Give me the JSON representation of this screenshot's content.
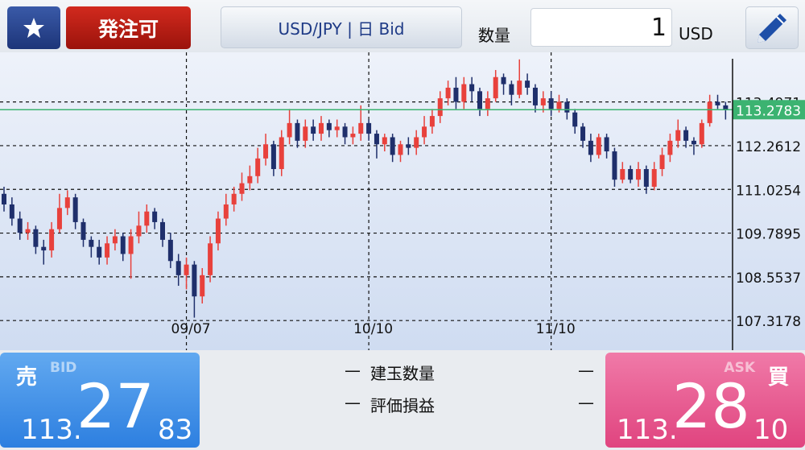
{
  "header": {
    "order_button": "発注可",
    "symbol": "USD/JPY | 日 Bid",
    "quantity_label": "数量",
    "quantity": 1,
    "currency": "USD"
  },
  "chart_data": {
    "type": "candlestick",
    "grid": true,
    "up_color": "#e8413c",
    "down_color": "#1f2f6b",
    "price_line_color": "#3cb371",
    "ylim": [
      106.48,
      114.9
    ],
    "yticks": [
      107.3178,
      108.5537,
      109.7895,
      111.0254,
      112.2612,
      113.4971
    ],
    "categories": [
      null,
      null,
      null,
      null,
      null,
      null,
      null,
      null,
      null,
      null,
      null,
      null,
      null,
      null,
      null,
      null,
      null,
      null,
      null,
      null,
      null,
      null,
      null,
      "09/07",
      null,
      null,
      null,
      null,
      null,
      null,
      null,
      null,
      null,
      null,
      null,
      null,
      null,
      null,
      null,
      null,
      null,
      null,
      null,
      null,
      null,
      null,
      "10/10",
      null,
      null,
      null,
      null,
      null,
      null,
      null,
      null,
      null,
      null,
      null,
      null,
      null,
      null,
      null,
      null,
      null,
      null,
      null,
      null,
      null,
      null,
      "11/10",
      null,
      null,
      null,
      null,
      null,
      null,
      null,
      null,
      null,
      null,
      null,
      null,
      null,
      null,
      null,
      null,
      null,
      null,
      null,
      null,
      null,
      null
    ],
    "open": [
      110.9,
      110.6,
      110.2,
      109.8,
      109.9,
      109.4,
      109.3,
      109.9,
      110.5,
      110.8,
      110.1,
      109.6,
      109.4,
      109.1,
      109.5,
      109.7,
      109.2,
      109.7,
      110.0,
      110.4,
      110.1,
      109.6,
      109.0,
      108.6,
      108.9,
      108.0,
      108.6,
      109.5,
      110.2,
      110.6,
      110.9,
      111.2,
      111.4,
      111.9,
      112.3,
      111.6,
      112.5,
      112.9,
      112.4,
      112.8,
      112.6,
      112.9,
      112.7,
      112.8,
      112.5,
      112.6,
      112.9,
      112.6,
      112.3,
      112.5,
      112.0,
      112.3,
      112.2,
      112.5,
      112.8,
      113.1,
      113.6,
      113.9,
      113.5,
      114.0,
      113.8,
      113.3,
      113.6,
      114.2,
      114.0,
      113.7,
      114.1,
      113.9,
      113.4,
      113.6,
      113.3,
      113.5,
      113.2,
      112.8,
      112.4,
      112.0,
      112.5,
      112.1,
      111.3,
      111.6,
      111.3,
      111.6,
      111.1,
      111.6,
      112.0,
      112.4,
      112.7,
      112.4,
      112.3,
      112.9,
      113.5,
      113.4
    ],
    "high": [
      111.1,
      110.8,
      110.4,
      110.1,
      110.0,
      109.6,
      110.1,
      110.9,
      111.0,
      110.9,
      110.2,
      109.7,
      109.6,
      109.7,
      109.9,
      109.8,
      109.9,
      110.4,
      110.6,
      110.5,
      110.2,
      109.8,
      109.2,
      109.1,
      109.0,
      108.8,
      109.7,
      110.4,
      110.9,
      111.1,
      111.5,
      111.7,
      112.2,
      112.6,
      112.4,
      112.7,
      113.3,
      113.0,
      113.0,
      113.0,
      113.1,
      113.0,
      113.0,
      112.9,
      112.8,
      113.4,
      113.0,
      112.7,
      112.6,
      112.6,
      112.4,
      112.5,
      112.7,
      113.1,
      113.3,
      113.8,
      114.1,
      114.2,
      114.2,
      114.2,
      113.9,
      113.8,
      114.4,
      114.3,
      114.1,
      114.7,
      114.3,
      114.0,
      113.8,
      113.8,
      113.7,
      113.6,
      113.3,
      112.9,
      112.6,
      112.6,
      112.6,
      112.2,
      111.8,
      111.7,
      111.8,
      111.7,
      111.8,
      112.2,
      112.6,
      113.0,
      112.8,
      112.5,
      113.0,
      113.7,
      113.7,
      113.5
    ],
    "low": [
      110.4,
      110.0,
      109.6,
      109.6,
      109.2,
      108.9,
      109.1,
      109.8,
      110.3,
      109.9,
      109.4,
      109.1,
      108.9,
      108.9,
      109.3,
      109.0,
      108.5,
      109.5,
      109.8,
      109.9,
      109.4,
      108.8,
      108.3,
      108.2,
      107.4,
      107.8,
      108.4,
      109.3,
      110.0,
      110.4,
      110.7,
      111.0,
      111.2,
      111.7,
      111.4,
      111.4,
      112.3,
      112.2,
      112.2,
      112.4,
      112.4,
      112.5,
      112.5,
      112.3,
      112.3,
      112.4,
      112.4,
      111.9,
      112.1,
      111.8,
      111.8,
      112.0,
      112.0,
      112.3,
      112.6,
      112.9,
      113.4,
      113.3,
      113.3,
      113.5,
      113.1,
      113.1,
      113.5,
      113.7,
      113.4,
      113.6,
      113.7,
      113.2,
      113.2,
      113.1,
      113.2,
      113.0,
      112.6,
      112.2,
      111.8,
      111.9,
      111.9,
      111.1,
      111.2,
      111.2,
      111.1,
      110.9,
      111.0,
      111.4,
      111.8,
      112.2,
      112.2,
      112.0,
      112.2,
      112.8,
      113.3,
      113.0
    ],
    "close": [
      110.6,
      110.2,
      109.8,
      109.9,
      109.4,
      109.3,
      109.9,
      110.5,
      110.8,
      110.1,
      109.6,
      109.4,
      109.1,
      109.5,
      109.7,
      109.2,
      109.7,
      110.0,
      110.4,
      110.1,
      109.6,
      109.0,
      108.6,
      108.9,
      108.0,
      108.6,
      109.5,
      110.2,
      110.6,
      110.9,
      111.2,
      111.4,
      111.9,
      112.3,
      111.6,
      112.5,
      112.9,
      112.4,
      112.8,
      112.6,
      112.9,
      112.7,
      112.8,
      112.5,
      112.6,
      112.9,
      112.6,
      112.3,
      112.5,
      112.0,
      112.3,
      112.2,
      112.5,
      112.8,
      113.1,
      113.6,
      113.9,
      113.5,
      114.0,
      113.8,
      113.3,
      113.6,
      114.2,
      114.0,
      113.7,
      114.1,
      113.9,
      113.4,
      113.6,
      113.3,
      113.5,
      113.2,
      112.8,
      112.4,
      112.0,
      112.5,
      112.1,
      111.3,
      111.6,
      111.3,
      111.6,
      111.1,
      111.6,
      112.0,
      112.4,
      112.7,
      112.4,
      112.3,
      112.9,
      113.5,
      113.4,
      113.2783
    ]
  },
  "bid": {
    "side": "売",
    "tag": "BID",
    "price": {
      "head": "113.",
      "pips": "27",
      "fraction": "83"
    }
  },
  "ask": {
    "side": "買",
    "tag": "ASK",
    "price": {
      "head": "113.",
      "pips": "28",
      "fraction": "10"
    }
  },
  "summary": [
    {
      "prefix": "—",
      "label": "建玉数量",
      "value": "—"
    },
    {
      "prefix": "—",
      "label": "評価損益",
      "value": "—"
    }
  ]
}
